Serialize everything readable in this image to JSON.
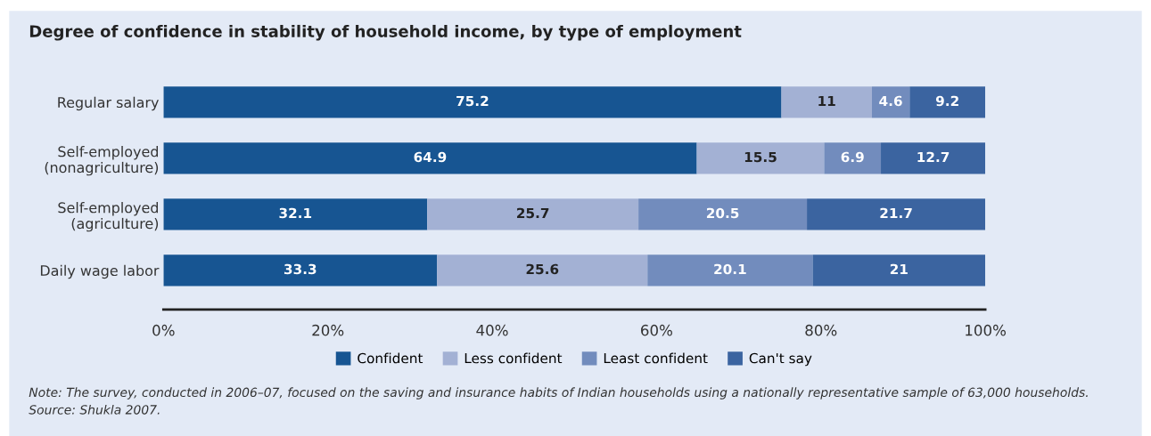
{
  "chart_data": {
    "type": "bar",
    "orientation": "horizontal",
    "stacked": true,
    "title": "Degree of confidence in stability of household income, by type of employment",
    "categories": [
      "Regular salary",
      "Self-employed\n(nonagriculture)",
      "Self-employed\n(agriculture)",
      "Daily wage labor"
    ],
    "series": [
      {
        "name": "Confident",
        "color": "#175592",
        "values": [
          75.2,
          64.9,
          32.1,
          33.3
        ]
      },
      {
        "name": "Less confident",
        "color": "#a3b1d4",
        "values": [
          11,
          15.5,
          25.7,
          25.6
        ]
      },
      {
        "name": "Least confident",
        "color": "#728cbd",
        "values": [
          4.6,
          6.9,
          20.5,
          20.1
        ]
      },
      {
        "name": "Can't say",
        "color": "#3b64a0",
        "values": [
          9.2,
          12.7,
          21.7,
          21
        ]
      }
    ],
    "xlim": [
      0,
      100
    ],
    "xticks": [
      {
        "value": 0,
        "label": "0%"
      },
      {
        "value": 20,
        "label": "20%"
      },
      {
        "value": 40,
        "label": "40%"
      },
      {
        "value": 60,
        "label": "60%"
      },
      {
        "value": 80,
        "label": "80%"
      },
      {
        "value": 100,
        "label": "100%"
      }
    ],
    "data_labels": true,
    "legend": "bottom",
    "grid": false,
    "annotations": [
      "Note: The survey, conducted in 2006–07, focused on the saving and insurance habits of Indian households using a nationally representative sample of 63,000 households.",
      "Source: Shukla 2007."
    ]
  }
}
